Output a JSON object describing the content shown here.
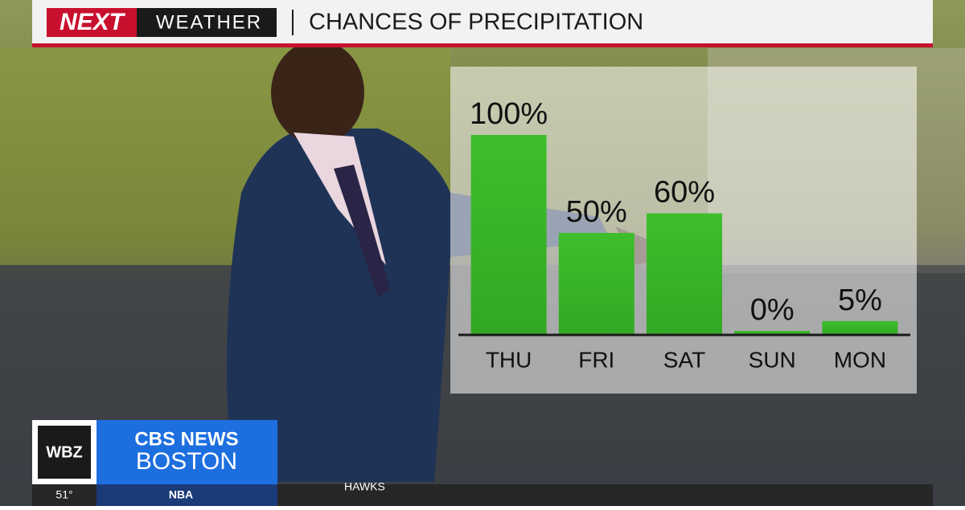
{
  "header": {
    "brand_next": "NEXT",
    "brand_weather": "WEATHER",
    "title": "CHANCES OF PRECIPITATION"
  },
  "logo": {
    "station": "WBZ",
    "network": "CBS NEWS",
    "city": "BOSTON"
  },
  "ticker": {
    "temperature": "51°",
    "league": "NBA",
    "team": "HAWKS"
  },
  "chart_data": {
    "type": "bar",
    "categories": [
      "THU",
      "FRI",
      "SAT",
      "SUN",
      "MON"
    ],
    "values": [
      100,
      50,
      60,
      0,
      5
    ],
    "value_labels": [
      "100%",
      "50%",
      "60%",
      "0%",
      "5%"
    ],
    "color": "#3dbb2b",
    "ylim": [
      0,
      100
    ]
  }
}
